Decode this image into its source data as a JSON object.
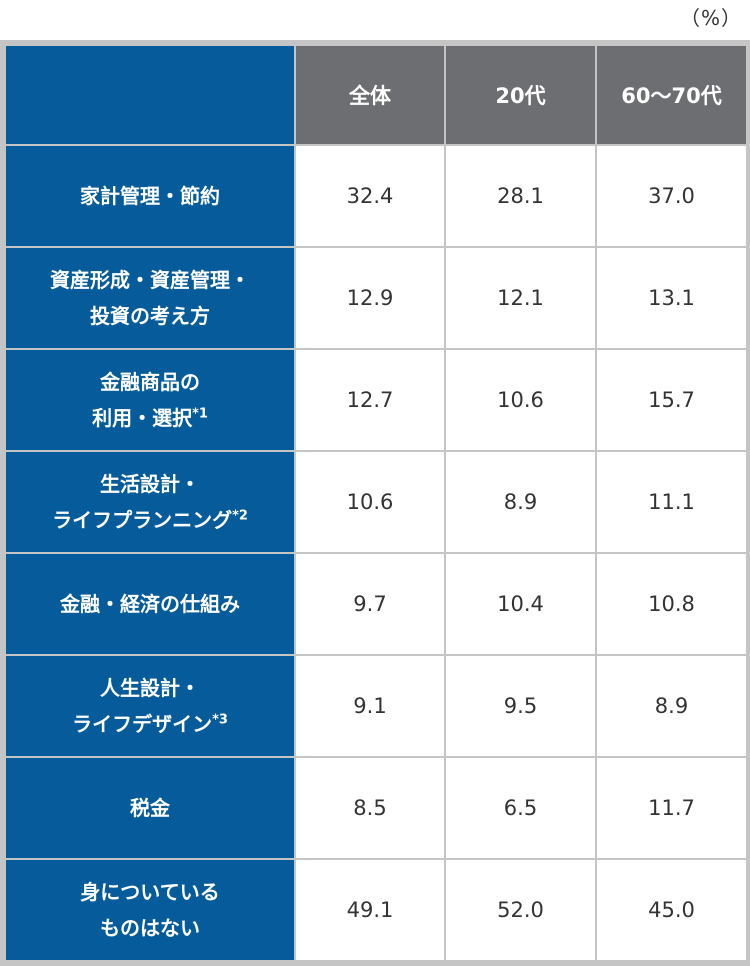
{
  "unit_label": "（%）",
  "columns": [
    "全体",
    "20代",
    "60〜70代"
  ],
  "rows": [
    {
      "label_lines": [
        "家計管理・節約"
      ],
      "note": "",
      "values": [
        "32.4",
        "28.1",
        "37.0"
      ]
    },
    {
      "label_lines": [
        "資産形成・資産管理・",
        "投資の考え方"
      ],
      "note": "",
      "values": [
        "12.9",
        "12.1",
        "13.1"
      ]
    },
    {
      "label_lines": [
        "金融商品の",
        "利用・選択"
      ],
      "note": "*1",
      "values": [
        "12.7",
        "10.6",
        "15.7"
      ]
    },
    {
      "label_lines": [
        "生活設計・",
        "ライフプランニング"
      ],
      "note": "*2",
      "values": [
        "10.6",
        "8.9",
        "11.1"
      ]
    },
    {
      "label_lines": [
        "金融・経済の仕組み"
      ],
      "note": "",
      "values": [
        "9.7",
        "10.4",
        "10.8"
      ]
    },
    {
      "label_lines": [
        "人生設計・",
        "ライフデザイン"
      ],
      "note": "*3",
      "values": [
        "9.1",
        "9.5",
        "8.9"
      ]
    },
    {
      "label_lines": [
        "税金"
      ],
      "note": "",
      "values": [
        "8.5",
        "6.5",
        "11.7"
      ]
    },
    {
      "label_lines": [
        "身についている",
        "ものはない"
      ],
      "note": "",
      "values": [
        "49.1",
        "52.0",
        "45.0"
      ]
    }
  ],
  "colors": {
    "row_header_bg": "#065c9a",
    "column_header_bg": "#6d6e71",
    "border": "#c5c5c5",
    "cell_bg": "#ffffff"
  }
}
